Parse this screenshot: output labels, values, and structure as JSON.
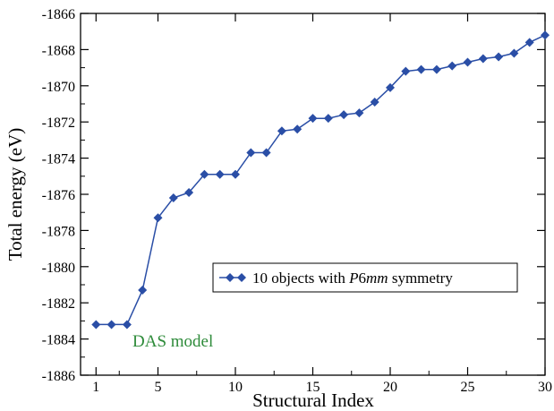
{
  "chart_data": {
    "type": "line",
    "xlabel": "Structural Index",
    "ylabel": "Total energy (eV)",
    "xlim": [
      0,
      30
    ],
    "ylim": [
      -1886,
      -1866
    ],
    "xticks": [
      1,
      5,
      10,
      15,
      20,
      25,
      30
    ],
    "yticks": [
      -1886,
      -1884,
      -1882,
      -1880,
      -1878,
      -1876,
      -1874,
      -1872,
      -1870,
      -1868,
      -1866
    ],
    "grid": false,
    "legend_position": "center-right",
    "series": [
      {
        "name": "10 objects with P6mm symmetry",
        "legend_parts": [
          "10 objects with ",
          "P",
          "6",
          "mm",
          " symmetry"
        ],
        "color": "#2a4ea6",
        "marker": "diamond",
        "x": [
          1,
          2,
          3,
          4,
          5,
          6,
          7,
          8,
          9,
          10,
          11,
          12,
          13,
          14,
          15,
          16,
          17,
          18,
          19,
          20,
          21,
          22,
          23,
          24,
          25,
          26,
          27,
          28,
          29,
          30
        ],
        "y": [
          -1883.2,
          -1883.2,
          -1883.2,
          -1881.3,
          -1877.3,
          -1876.2,
          -1875.9,
          -1874.9,
          -1874.9,
          -1874.9,
          -1873.7,
          -1873.7,
          -1872.5,
          -1872.4,
          -1871.8,
          -1871.8,
          -1871.6,
          -1871.5,
          -1870.9,
          -1870.1,
          -1869.2,
          -1869.1,
          -1869.1,
          -1868.9,
          -1868.7,
          -1868.5,
          -1868.4,
          -1868.2,
          -1867.6,
          -1867.2
        ]
      }
    ],
    "annotations": [
      {
        "text": "DAS model",
        "color": "#2e8b3a"
      }
    ]
  }
}
